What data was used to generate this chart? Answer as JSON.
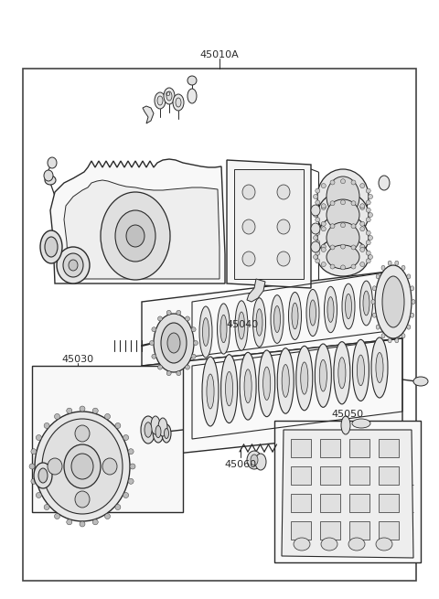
{
  "bg_color": "#ffffff",
  "border_color": "#555555",
  "line_color": "#2a2a2a",
  "text_color": "#2a2a2a",
  "title_label": "45010A",
  "label_45040": "45040",
  "label_45030": "45030",
  "label_45050": "45050",
  "label_45060": "45060",
  "figsize": [
    4.8,
    6.55
  ],
  "dpi": 100,
  "font_size": 7.5
}
